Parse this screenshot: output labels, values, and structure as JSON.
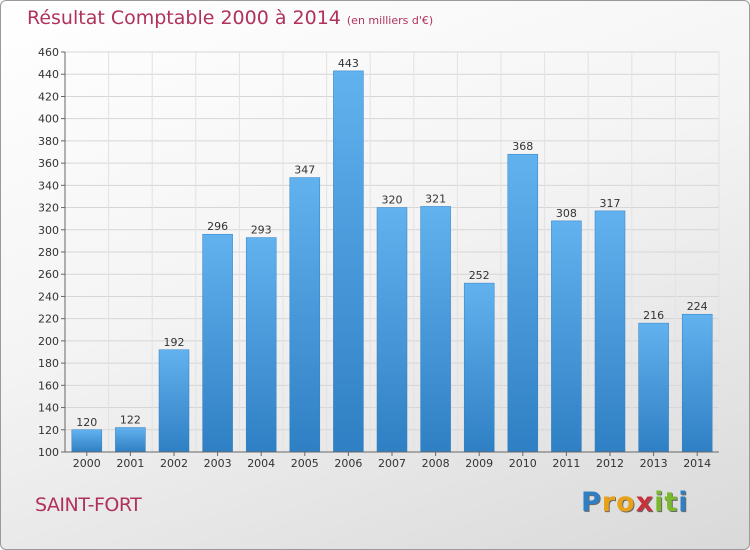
{
  "chart_data": {
    "type": "bar",
    "title": "Résultat Comptable 2000 à 2014",
    "subtitle": "(en milliers d'€)",
    "categories": [
      "2000",
      "2001",
      "2002",
      "2003",
      "2004",
      "2005",
      "2006",
      "2007",
      "2008",
      "2009",
      "2010",
      "2011",
      "2012",
      "2013",
      "2014"
    ],
    "values": [
      120,
      122,
      192,
      296,
      293,
      347,
      443,
      320,
      321,
      252,
      368,
      308,
      317,
      216,
      224
    ],
    "ylim": [
      100,
      460
    ],
    "yticks": [
      100,
      120,
      140,
      160,
      180,
      200,
      220,
      240,
      260,
      280,
      300,
      320,
      340,
      360,
      380,
      400,
      420,
      440,
      460
    ],
    "grid": true,
    "bar_color": "#4a9ee0",
    "bar_color_light": "#62b2ef",
    "bar_color_dark": "#2f7fc4"
  },
  "commune": "SAINT-FORT",
  "logo": {
    "letters": [
      "P",
      "r",
      "o",
      "x",
      "i",
      "t",
      "i"
    ],
    "colors": [
      "#2f7fc4",
      "#e8a21a",
      "#e8a21a",
      "#c8323c",
      "#7ab82e",
      "#7ab82e",
      "#2f7fc4"
    ]
  },
  "colors": {
    "title": "#b0325a"
  }
}
